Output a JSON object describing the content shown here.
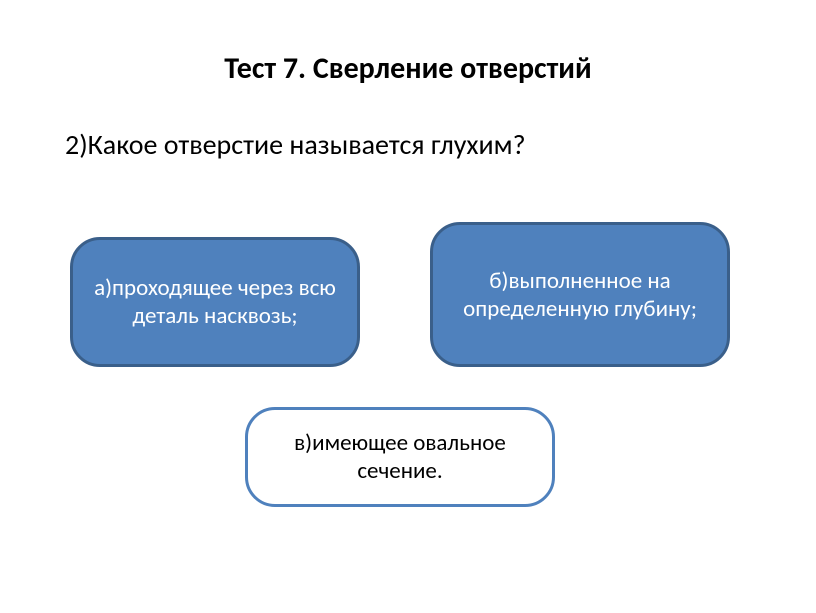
{
  "title": "Тест 7. Сверление отверстий",
  "question": "2)Какое отверстие называется глухим?",
  "options": {
    "a": {
      "text": "а)проходящее через всю деталь насквозь;",
      "background_color": "#4f81bd",
      "border_color": "#3a5f8a",
      "text_color": "#ffffff",
      "border_radius": 30,
      "font_size": 23
    },
    "b": {
      "text": "б)выполненное на определенную глубину;",
      "background_color": "#4f81bd",
      "border_color": "#3a5f8a",
      "text_color": "#ffffff",
      "border_radius": 30,
      "font_size": 23
    },
    "c": {
      "text": "в)имеющее овальное сечение.",
      "background_color": "#ffffff",
      "border_color": "#4f81bd",
      "text_color": "#000000",
      "border_radius": 30,
      "font_size": 23
    }
  },
  "styling": {
    "page_background": "#ffffff",
    "title_fontsize": 30,
    "title_weight": "bold",
    "title_color": "#000000",
    "question_fontsize": 28,
    "question_color": "#000000",
    "font_family": "Calibri"
  }
}
